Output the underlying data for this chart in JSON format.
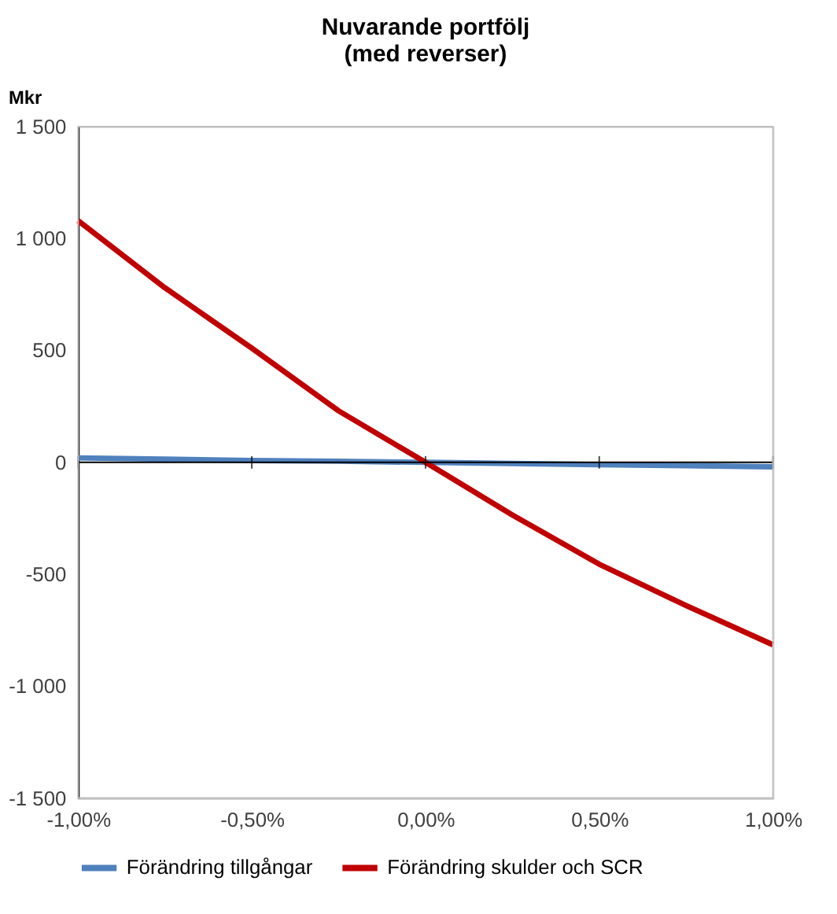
{
  "chart_data": {
    "type": "line",
    "title": [
      "Nuvarande portfölj",
      "(med reverser)"
    ],
    "ylabel": "Mkr",
    "x": [
      -1.0,
      -0.75,
      -0.5,
      -0.25,
      0.0,
      0.25,
      0.5,
      0.75,
      1.0
    ],
    "series": [
      {
        "name": "Förändring tillgångar",
        "color": "#4f81bd",
        "values": [
          20,
          14,
          8,
          5,
          0,
          -5,
          -10,
          -15,
          -20
        ]
      },
      {
        "name": "Förändring skulder och SCR",
        "color": "#c00000",
        "values": [
          1080,
          780,
          510,
          230,
          0,
          -235,
          -455,
          -640,
          -815
        ]
      }
    ],
    "xlim": [
      -1.0,
      1.0
    ],
    "xticks": [
      {
        "value": -1.0,
        "label": "-1,00%"
      },
      {
        "value": -0.5,
        "label": "-0,50%"
      },
      {
        "value": 0.0,
        "label": "0,00%"
      },
      {
        "value": 0.5,
        "label": "0,50%"
      },
      {
        "value": 1.0,
        "label": "1,00%"
      }
    ],
    "ylim": [
      -1500,
      1500
    ],
    "yticks": [
      {
        "value": -1500,
        "label": "-1 500"
      },
      {
        "value": -1000,
        "label": "-1 000"
      },
      {
        "value": -500,
        "label": "-500"
      },
      {
        "value": 0,
        "label": "0"
      },
      {
        "value": 500,
        "label": "500"
      },
      {
        "value": 1000,
        "label": "1 000"
      },
      {
        "value": 1500,
        "label": "1 500"
      }
    ],
    "ref_lines": [
      {
        "axis": "y",
        "value": 0,
        "color": "#000000"
      }
    ],
    "grid": false,
    "legend": "bottom",
    "marker": "none",
    "line_style": "solid"
  }
}
